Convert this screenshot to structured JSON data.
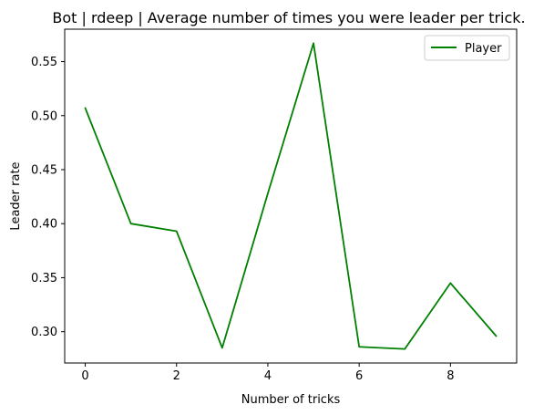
{
  "chart_data": {
    "type": "line",
    "title": "Bot | rdeep | Average number of times you were leader per trick.",
    "xlabel": "Number of tricks",
    "ylabel": "Leader rate",
    "x": [
      0,
      1,
      2,
      3,
      4,
      5,
      6,
      7,
      8,
      9
    ],
    "series": [
      {
        "name": "Player",
        "color": "#008000",
        "values": [
          0.507,
          0.4,
          0.393,
          0.285,
          0.428,
          0.567,
          0.286,
          0.284,
          0.345,
          0.296
        ]
      }
    ],
    "xlim": [
      -0.45,
      9.45
    ],
    "ylim": [
      0.271,
      0.58
    ],
    "xticks": [
      0,
      2,
      4,
      6,
      8
    ],
    "xtick_labels": [
      "0",
      "2",
      "4",
      "6",
      "8"
    ],
    "yticks": [
      0.3,
      0.35,
      0.4,
      0.45,
      0.5,
      0.55
    ],
    "ytick_labels": [
      "0.30",
      "0.35",
      "0.40",
      "0.45",
      "0.50",
      "0.55"
    ],
    "grid": false,
    "legend_position": "top-right"
  }
}
